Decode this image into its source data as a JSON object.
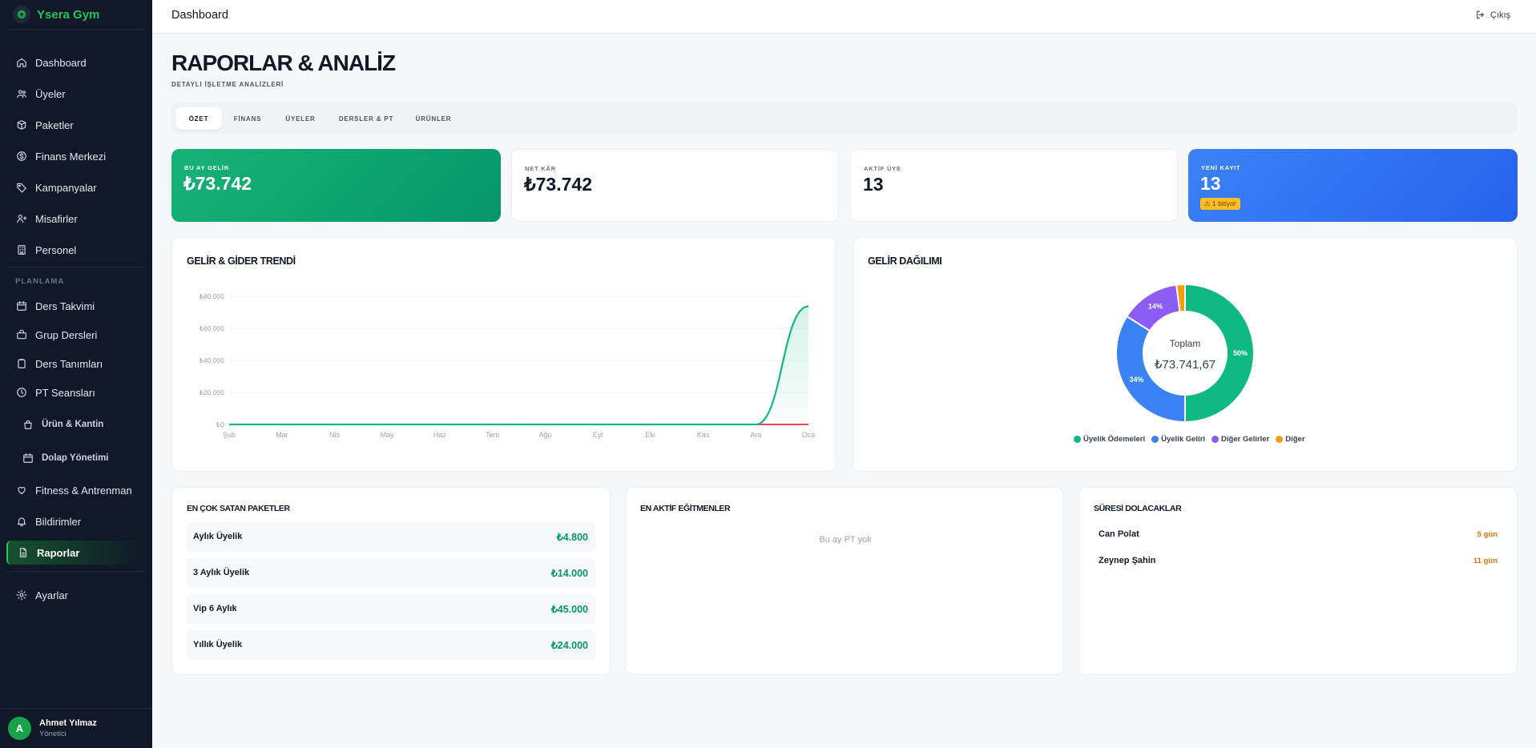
{
  "brand": {
    "name": "Ysera Gym"
  },
  "sidebar": {
    "items": [
      {
        "label": "Dashboard"
      },
      {
        "label": "Üyeler"
      },
      {
        "label": "Paketler"
      },
      {
        "label": "Finans Merkezi"
      },
      {
        "label": "Kampanyalar"
      },
      {
        "label": "Misafirler"
      },
      {
        "label": "Personel"
      }
    ],
    "section_label": "PLANLAMA",
    "planning_items": [
      {
        "label": "Ders Takvimi"
      },
      {
        "label": "Grup Dersleri"
      },
      {
        "label": "Ders Tanımları"
      },
      {
        "label": "PT Seansları"
      },
      {
        "label": "Ürün & Kantin"
      },
      {
        "label": "Dolap Yönetimi"
      },
      {
        "label": "Fitness & Antrenman"
      },
      {
        "label": "Bildirimler"
      },
      {
        "label": "Raporlar"
      }
    ],
    "settings_label": "Ayarlar",
    "user": {
      "initial": "A",
      "name": "Ahmet Yılmaz",
      "role": "Yönetici"
    }
  },
  "topbar": {
    "title": "Dashboard",
    "logout_label": "Çıkış"
  },
  "page": {
    "title": "RAPORLAR & ANALİZ",
    "subtitle": "DETAYLI İŞLETME ANALİZLERİ"
  },
  "tabs": [
    {
      "label": "ÖZET"
    },
    {
      "label": "FİNANS"
    },
    {
      "label": "ÜYELER"
    },
    {
      "label": "DERSLER & PT"
    },
    {
      "label": "ÜRÜNLER"
    }
  ],
  "kpis": [
    {
      "label": "BU AY GELİR",
      "value": "₺73.742"
    },
    {
      "label": "NET KÂR",
      "value": "₺73.742"
    },
    {
      "label": "AKTİF ÜYE",
      "value": "13"
    },
    {
      "label": "YENİ KAYIT",
      "value": "13",
      "badge": "⚠ 1 bitiyor"
    }
  ],
  "trend": {
    "title": "GELİR & GİDER TRENDİ",
    "chart_data": {
      "type": "area",
      "categories": [
        "Şub",
        "Mar",
        "Nis",
        "May",
        "Haz",
        "Tem",
        "Ağu",
        "Eyl",
        "Eki",
        "Kas",
        "Ara",
        "Oca"
      ],
      "y_ticks": [
        "₺80.000",
        "₺60.000",
        "₺40.000",
        "₺20.000",
        "₺0"
      ],
      "ylim": [
        0,
        80000
      ],
      "series": [
        {
          "color": "#10b981",
          "values": [
            0,
            0,
            0,
            0,
            0,
            0,
            0,
            0,
            0,
            0,
            0,
            73742
          ]
        },
        {
          "color": "#f43f5e",
          "values": [
            0,
            0,
            0,
            0,
            0,
            0,
            0,
            0,
            0,
            0,
            0,
            0
          ]
        }
      ]
    }
  },
  "distribution": {
    "title": "GELİR DAĞILIMI",
    "center_label": "Toplam",
    "center_value": "₺73.741,67",
    "chart_data": {
      "type": "pie",
      "labels": [
        "Üyelik Ödemeleri",
        "Üyelik Geliri",
        "Diğer Gelirler",
        "Diğer"
      ],
      "values": [
        50,
        34,
        14,
        2
      ],
      "data_labels": [
        "50%",
        "34%",
        "14%",
        ""
      ],
      "colors": [
        "#10b981",
        "#3b82f6",
        "#8b5cf6",
        "#f59e0b"
      ]
    }
  },
  "top_packages": {
    "title": "EN ÇOK SATAN PAKETLER",
    "rows": [
      {
        "name": "Aylık Üyelik",
        "value": "₺4.800"
      },
      {
        "name": "3 Aylık Üyelik",
        "value": "₺14.000"
      },
      {
        "name": "Vip 6 Aylık",
        "value": "₺45.000"
      },
      {
        "name": "Yıllık Üyelik",
        "value": "₺24.000"
      }
    ]
  },
  "top_trainers": {
    "title": "EN AKTİF EĞİTMENLER",
    "empty": "Bu ay PT yok"
  },
  "expiring": {
    "title": "SÜRESİ DOLACAKLAR",
    "rows": [
      {
        "name": "Can Polat",
        "days": "5 gün"
      },
      {
        "name": "Zeynep Şahin",
        "days": "11 gün"
      }
    ]
  }
}
